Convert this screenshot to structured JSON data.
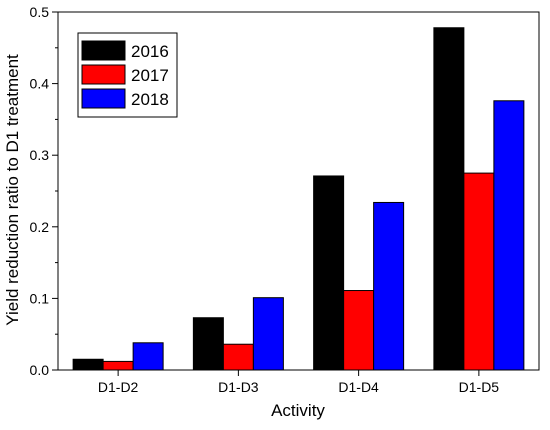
{
  "chart_data": {
    "type": "bar",
    "xlabel": "Activity",
    "ylabel": "Yield reduction ratio to D1 treatment",
    "categories": [
      "D1-D2",
      "D1-D3",
      "D1-D4",
      "D1-D5"
    ],
    "series": [
      {
        "name": "2016",
        "color": "#000000",
        "values": [
          0.015,
          0.073,
          0.271,
          0.478
        ]
      },
      {
        "name": "2017",
        "color": "#ff0000",
        "values": [
          0.012,
          0.036,
          0.111,
          0.275
        ]
      },
      {
        "name": "2018",
        "color": "#0000ff",
        "values": [
          0.038,
          0.101,
          0.234,
          0.376
        ]
      }
    ],
    "ylim": [
      0,
      0.5
    ],
    "yticks": [
      "0.0",
      "0.1",
      "0.2",
      "0.3",
      "0.4",
      "0.5"
    ],
    "legend_position": "top-left",
    "grid": false
  }
}
